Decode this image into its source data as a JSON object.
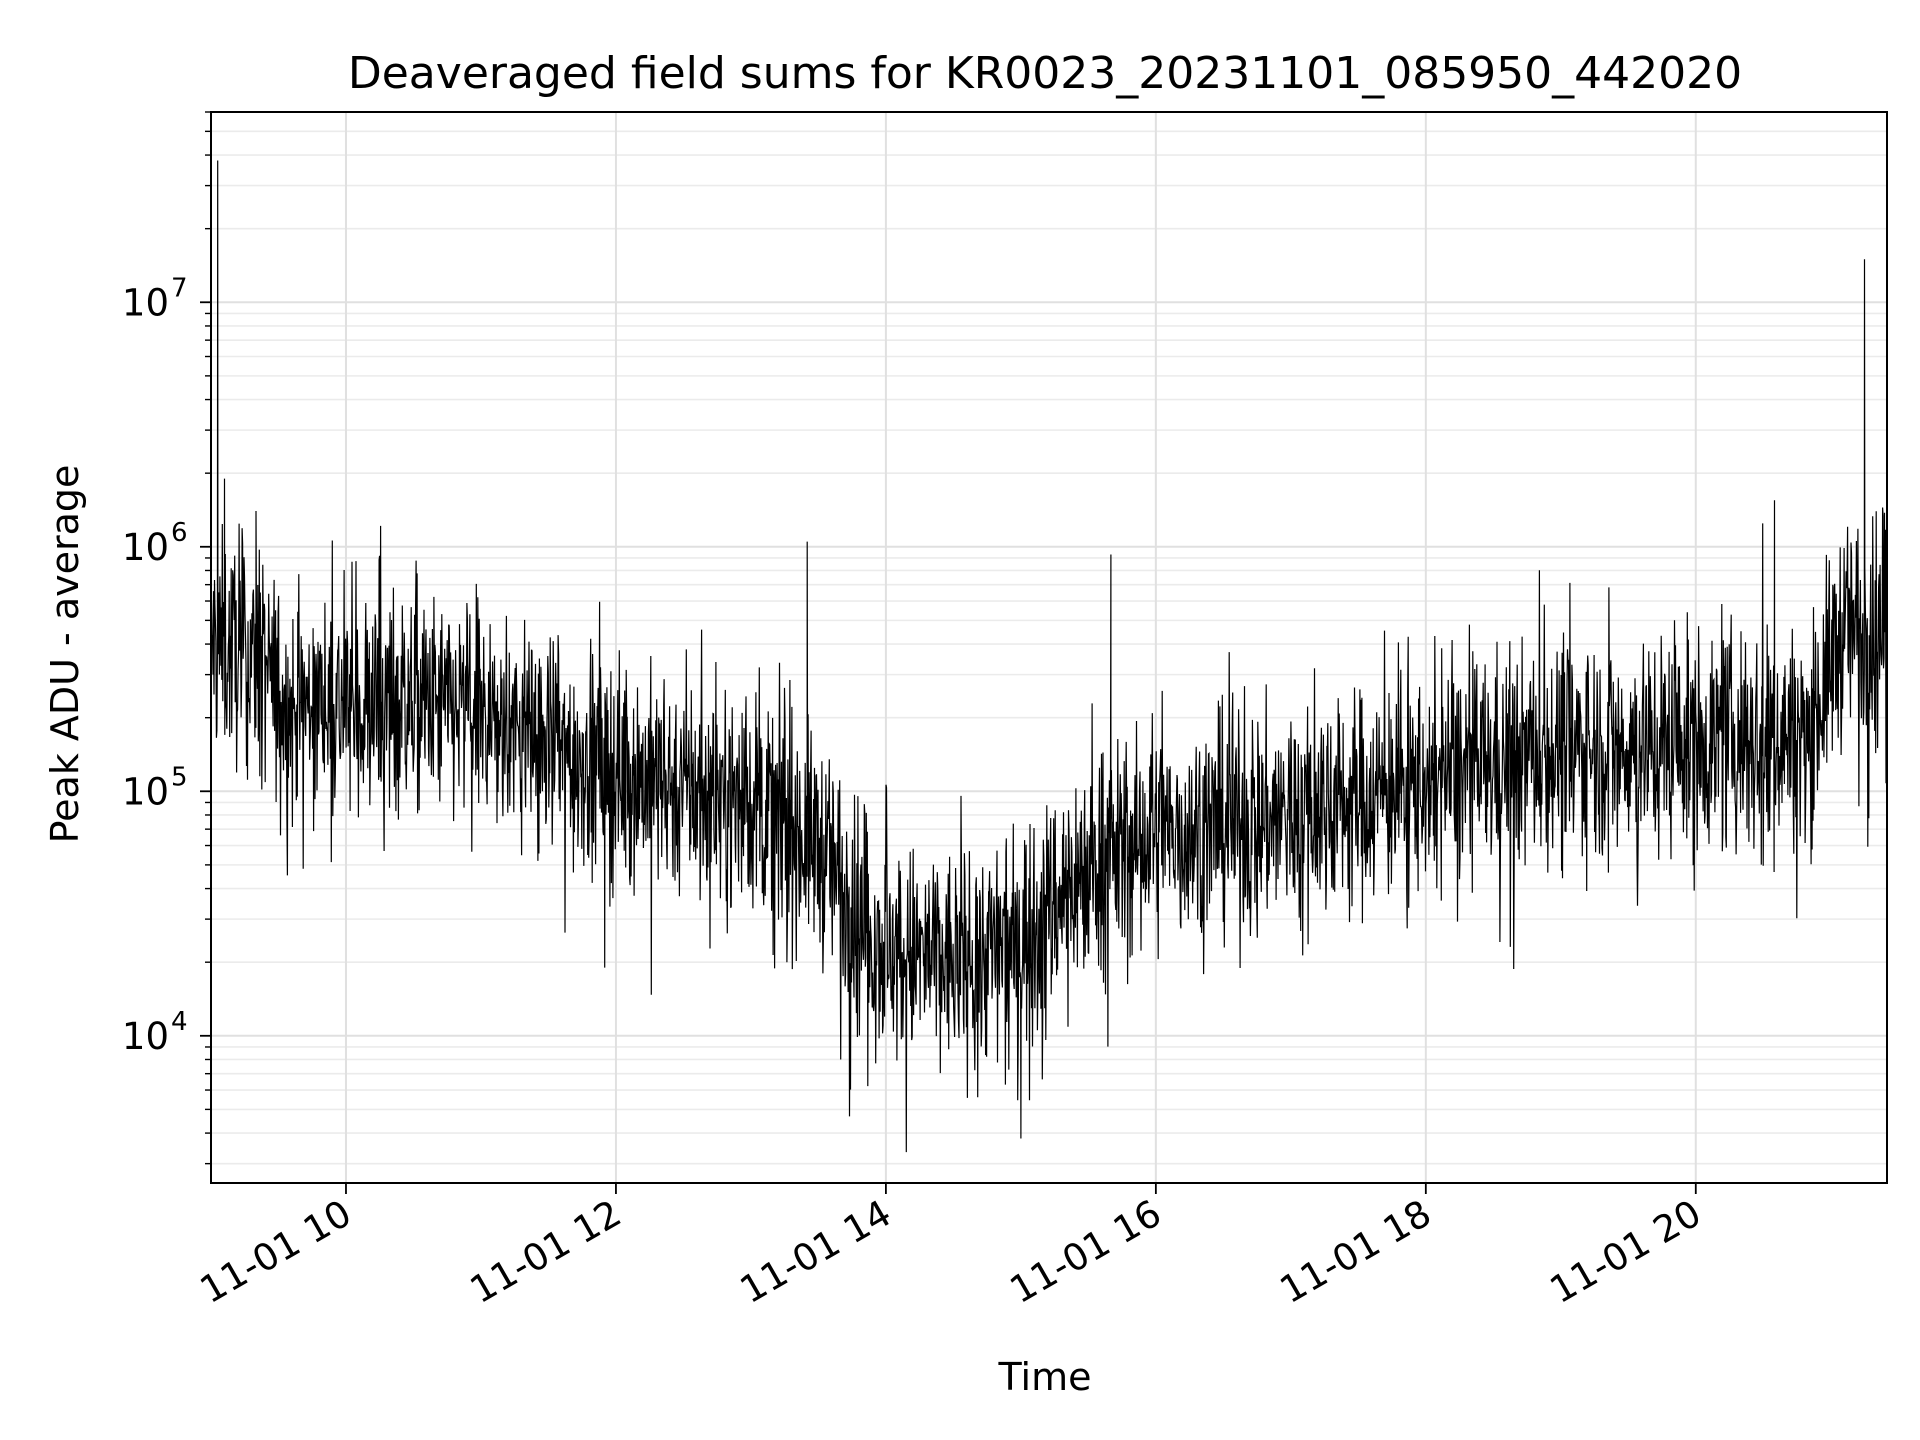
{
  "chart_data": {
    "type": "line",
    "title": "Deaveraged field sums for KR0023_20231101_085950_442020",
    "xlabel": "Time",
    "ylabel": "Peak ADU - average",
    "yscale": "log",
    "ylim": [
      2500,
      60000000
    ],
    "xlim": [
      "2023-11-01 09:00",
      "2023-11-01 21:25"
    ],
    "grid": true,
    "line_color": "#000000",
    "x_ticks": [
      {
        "value": "2023-11-01 10:00",
        "label": "11-01 10"
      },
      {
        "value": "2023-11-01 12:00",
        "label": "11-01 12"
      },
      {
        "value": "2023-11-01 14:00",
        "label": "11-01 14"
      },
      {
        "value": "2023-11-01 16:00",
        "label": "11-01 16"
      },
      {
        "value": "2023-11-01 18:00",
        "label": "11-01 18"
      },
      {
        "value": "2023-11-01 20:00",
        "label": "11-01 20"
      }
    ],
    "y_ticks": [
      {
        "value": 10000,
        "base": "10",
        "exp": "4"
      },
      {
        "value": 100000,
        "base": "10",
        "exp": "5"
      },
      {
        "value": 1000000,
        "base": "10",
        "exp": "6"
      },
      {
        "value": 10000000,
        "base": "10",
        "exp": "7"
      }
    ],
    "trend": [
      {
        "x": "2023-11-01 09:00",
        "y": 400000
      },
      {
        "x": "2023-11-01 09:20",
        "y": 350000
      },
      {
        "x": "2023-11-01 09:35",
        "y": 220000
      },
      {
        "x": "2023-11-01 10:30",
        "y": 230000
      },
      {
        "x": "2023-11-01 11:00",
        "y": 200000
      },
      {
        "x": "2023-11-01 12:00",
        "y": 120000
      },
      {
        "x": "2023-11-01 13:00",
        "y": 90000
      },
      {
        "x": "2023-11-01 13:30",
        "y": 60000
      },
      {
        "x": "2023-11-01 14:00",
        "y": 22000
      },
      {
        "x": "2023-11-01 14:30",
        "y": 20000
      },
      {
        "x": "2023-11-01 15:00",
        "y": 25000
      },
      {
        "x": "2023-11-01 15:30",
        "y": 50000
      },
      {
        "x": "2023-11-01 16:00",
        "y": 65000
      },
      {
        "x": "2023-11-01 17:00",
        "y": 80000
      },
      {
        "x": "2023-11-01 18:00",
        "y": 110000
      },
      {
        "x": "2023-11-01 19:00",
        "y": 150000
      },
      {
        "x": "2023-11-01 20:00",
        "y": 160000
      },
      {
        "x": "2023-11-01 20:50",
        "y": 170000
      },
      {
        "x": "2023-11-01 21:05",
        "y": 450000
      },
      {
        "x": "2023-11-01 21:25",
        "y": 500000
      }
    ],
    "spikes": [
      {
        "x": "2023-11-01 09:03",
        "y": 38000000
      },
      {
        "x": "2023-11-01 09:06",
        "y": 1900000
      },
      {
        "x": "2023-11-01 09:20",
        "y": 1400000
      },
      {
        "x": "2023-11-01 11:55",
        "y": 19000
      },
      {
        "x": "2023-11-01 13:25",
        "y": 1050000
      },
      {
        "x": "2023-11-01 15:00",
        "y": 3800
      },
      {
        "x": "2023-11-01 15:40",
        "y": 930000
      },
      {
        "x": "2023-11-01 20:35",
        "y": 1550000
      },
      {
        "x": "2023-11-01 21:15",
        "y": 15000000
      }
    ]
  }
}
